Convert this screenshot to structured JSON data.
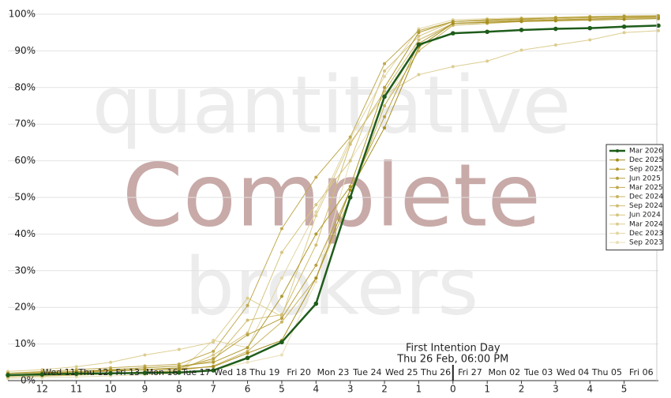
{
  "chart_data": {
    "type": "line",
    "watermarks": [
      "quantitative",
      "Complete",
      "brokers"
    ],
    "annotation": {
      "x": 0,
      "lines": [
        "First Intention Day",
        "Thu 26 Feb, 06:00 PM"
      ]
    },
    "xlim": [
      -13,
      6
    ],
    "ylim": [
      0,
      100
    ],
    "xticks": [
      {
        "value": -12,
        "label": "12"
      },
      {
        "value": -11,
        "label": "11"
      },
      {
        "value": -10,
        "label": "10"
      },
      {
        "value": -9,
        "label": "9"
      },
      {
        "value": -8,
        "label": "8"
      },
      {
        "value": -7,
        "label": "7"
      },
      {
        "value": -6,
        "label": "6"
      },
      {
        "value": -5,
        "label": "5"
      },
      {
        "value": -4,
        "label": "4"
      },
      {
        "value": -3,
        "label": "3"
      },
      {
        "value": -2,
        "label": "2"
      },
      {
        "value": -1,
        "label": "1"
      },
      0,
      1,
      2,
      3,
      4,
      5
    ],
    "date_ticks": [
      {
        "value": -11.5,
        "label": "Wed 11"
      },
      {
        "value": -10.5,
        "label": "Thu 12"
      },
      {
        "value": -9.5,
        "label": "Fri 13"
      },
      {
        "value": -8.5,
        "label": "Mon 16"
      },
      {
        "value": -7.5,
        "label": "Tue 17"
      },
      {
        "value": -6.5,
        "label": "Wed 18"
      },
      {
        "value": -5.5,
        "label": "Thu 19"
      },
      {
        "value": -4.5,
        "label": "Fri 20"
      },
      {
        "value": -3.5,
        "label": "Mon 23"
      },
      {
        "value": -2.5,
        "label": "Tue 24"
      },
      {
        "value": -1.5,
        "label": "Wed 25"
      },
      {
        "value": -0.5,
        "label": "Thu 26"
      },
      {
        "value": 0.5,
        "label": "Fri 27"
      },
      {
        "value": 1.5,
        "label": "Mon 02"
      },
      {
        "value": 2.5,
        "label": "Tue 03"
      },
      {
        "value": 3.5,
        "label": "Wed 04"
      },
      {
        "value": 4.5,
        "label": "Thu 05"
      },
      {
        "value": 5.5,
        "label": "Fri 06"
      }
    ],
    "yticks": [
      {
        "value": 0,
        "label": "0%"
      },
      {
        "value": 10,
        "label": "10%"
      },
      {
        "value": 20,
        "label": "20%"
      },
      {
        "value": 30,
        "label": "30%"
      },
      {
        "value": 40,
        "label": "40%"
      },
      {
        "value": 50,
        "label": "50%"
      },
      {
        "value": 60,
        "label": "60%"
      },
      {
        "value": 70,
        "label": "70%"
      },
      {
        "value": 80,
        "label": "80%"
      },
      {
        "value": 90,
        "label": "90%"
      },
      {
        "value": 100,
        "label": "100%"
      }
    ],
    "grid": true,
    "legend": "right",
    "x": [
      -13,
      -12,
      -11,
      -10,
      -9,
      -8,
      -7,
      -6,
      -5,
      -4,
      -3,
      -2,
      -1,
      0,
      1,
      2,
      3,
      4,
      5,
      6
    ],
    "series": [
      {
        "name": "Mar 2026",
        "color": "#1e5c1a",
        "values": [
          1.5,
          1.7,
          1.9,
          2.0,
          2.1,
          2.2,
          2.8,
          6.2,
          10.5,
          21,
          50,
          77.5,
          91.7,
          94.8,
          95.2,
          95.7,
          96,
          96.2,
          96.6,
          96.9
        ]
      },
      {
        "name": "Dec 2025",
        "color": "#a68e1e",
        "values": [
          2,
          2.2,
          2.5,
          2.8,
          3,
          3.2,
          3.8,
          7.5,
          11,
          28,
          52,
          69,
          91,
          97.5,
          97.8,
          98,
          98.2,
          98.4,
          98.6,
          98.8
        ]
      },
      {
        "name": "Sep 2025",
        "color": "#b09a30",
        "values": [
          1.5,
          2,
          2.5,
          3,
          3.5,
          4,
          5,
          9,
          23,
          40,
          53,
          80,
          95,
          98,
          98.3,
          98.6,
          99,
          99.2,
          99.4,
          99.5
        ]
      },
      {
        "name": "Jun 2025",
        "color": "#b8a040",
        "values": [
          1.5,
          1.8,
          2.2,
          2.6,
          3,
          3.5,
          6,
          12.5,
          17,
          31.5,
          52,
          72,
          92,
          97.5,
          97.8,
          98.2,
          98.5,
          98.7,
          99,
          99.2
        ]
      },
      {
        "name": "Mar 2025",
        "color": "#c0aa50",
        "values": [
          2,
          2.5,
          3,
          3.5,
          4,
          4.5,
          8,
          20.5,
          41.5,
          55.5,
          66.5,
          86.5,
          95.5,
          98,
          98.5,
          98.8,
          99,
          99.3,
          99.5,
          99.6
        ]
      },
      {
        "name": "Dec 2024",
        "color": "#c8b460",
        "values": [
          1,
          1.3,
          1.6,
          2,
          2.4,
          2.8,
          4,
          8,
          16,
          28,
          50,
          75,
          90,
          97,
          97.5,
          98,
          98.3,
          98.6,
          98.9,
          99
        ]
      },
      {
        "name": "Sep 2024",
        "color": "#d0bd70",
        "values": [
          1.5,
          1.8,
          2.2,
          2.6,
          3,
          3.5,
          5.5,
          16.5,
          18,
          37,
          64.5,
          79,
          93,
          97.5,
          98,
          98.4,
          98.7,
          99,
          99.2,
          99.3
        ]
      },
      {
        "name": "Jun 2024",
        "color": "#d6c580",
        "values": [
          1,
          1.2,
          1.5,
          1.8,
          2.2,
          2.7,
          7,
          13,
          35,
          48,
          60,
          84.5,
          94,
          98,
          98.5,
          98.8,
          99,
          99.2,
          99.4,
          99.5
        ]
      },
      {
        "name": "Mar 2024",
        "color": "#dccd90",
        "values": [
          2.5,
          3,
          3.8,
          5,
          7,
          8.5,
          10.5,
          22.5,
          17.5,
          45,
          65,
          78,
          83.5,
          85.7,
          87.2,
          90.2,
          91.6,
          93,
          95,
          95.5
        ]
      },
      {
        "name": "Dec 2023",
        "color": "#e2d6a4",
        "values": [
          1,
          1.2,
          1.5,
          1.8,
          2.1,
          2.5,
          11,
          9,
          28,
          46,
          66,
          83,
          96,
          98.5,
          98.8,
          99,
          99.2,
          99.4,
          99.5,
          99.6
        ]
      },
      {
        "name": "Sep 2023",
        "color": "#e8dfb8",
        "values": [
          0.5,
          0.8,
          1,
          1.3,
          1.6,
          2,
          3,
          5,
          7,
          27,
          60,
          75,
          93,
          97,
          97.5,
          98,
          98.4,
          98.7,
          99,
          99.2
        ]
      }
    ]
  }
}
